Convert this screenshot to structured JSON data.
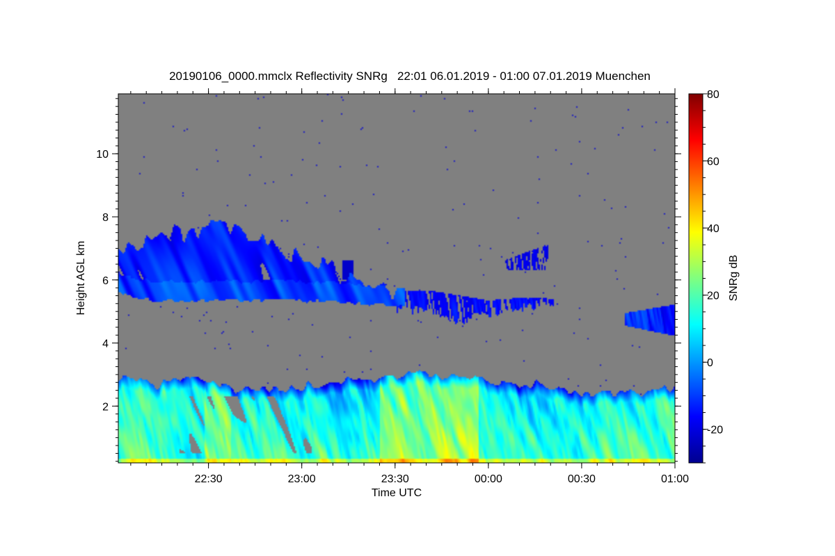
{
  "chart_data": {
    "type": "heatmap",
    "title": "20190106_0000.mmclx Reflectivity SNRg   22:01 06.01.2019 - 01:00 07.01.2019 Muenchen",
    "xlabel": "Time UTC",
    "ylabel": "Height AGL km",
    "colorbar_label": "SNRg dB",
    "xlim": [
      "22:01",
      "01:00"
    ],
    "x_ticks": [
      "22:30",
      "23:00",
      "23:30",
      "00:00",
      "00:30",
      "01:00"
    ],
    "x_tick_hours": [
      22.5,
      23.0,
      23.5,
      24.0,
      24.5,
      25.0
    ],
    "ylim": [
      0.2,
      11.9
    ],
    "y_ticks": [
      2,
      4,
      6,
      8,
      10
    ],
    "y_tick_labels": [
      "2",
      "4",
      "6",
      "8",
      "10"
    ],
    "clim": [
      -30,
      80
    ],
    "colorbar_ticks": [
      -20,
      0,
      20,
      40,
      60,
      80
    ],
    "colorbar_tick_labels": [
      "-20",
      "0",
      "20",
      "40",
      "60",
      "80"
    ],
    "colormap": "jet",
    "background_color": "#808080",
    "features": [
      {
        "name": "mid-level cloud layer",
        "t_start": "22:01",
        "t_end": "23:45",
        "z_bottom": 5.3,
        "z_top": 7.7,
        "snr_db": -15
      },
      {
        "name": "descending cloud tail",
        "t_start": "23:30",
        "t_end": "00:10",
        "z_bottom": 4.6,
        "z_top": 5.6,
        "snr_db": -18
      },
      {
        "name": "upper patches",
        "t_start": "00:05",
        "t_end": "00:20",
        "z_bottom": 6.3,
        "z_top": 7.2,
        "snr_db": -20
      },
      {
        "name": "late cloud base",
        "t_start": "00:44",
        "t_end": "01:00",
        "z_bottom": 4.2,
        "z_top": 5.2,
        "snr_db": -15
      },
      {
        "name": "boundary layer",
        "t_start": "22:01",
        "t_end": "01:00",
        "z_bottom": 0.2,
        "z_top": 3.0,
        "snr_db": 15
      },
      {
        "name": "strong near-surface echo",
        "t_start": "23:25",
        "t_end": "23:55",
        "z_bottom": 0.2,
        "z_top": 2.5,
        "snr_db": 35
      }
    ]
  }
}
